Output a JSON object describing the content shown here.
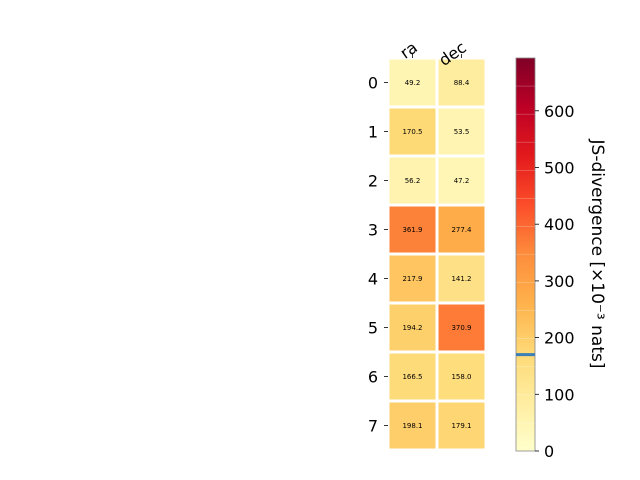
{
  "chart_data": {
    "type": "heatmap",
    "columns": [
      "ra",
      "dec"
    ],
    "rows": [
      "0",
      "1",
      "2",
      "3",
      "4",
      "5",
      "6",
      "7"
    ],
    "values": [
      [
        49.2,
        88.4
      ],
      [
        170.5,
        53.5
      ],
      [
        56.2,
        47.2
      ],
      [
        361.9,
        277.4
      ],
      [
        217.9,
        141.2
      ],
      [
        194.2,
        370.9
      ],
      [
        166.5,
        158.0
      ],
      [
        198.1,
        179.1
      ]
    ],
    "value_labels": [
      [
        "49.2",
        "88.4"
      ],
      [
        "170.5",
        "53.5"
      ],
      [
        "56.2",
        "47.2"
      ],
      [
        "361.9",
        "277.4"
      ],
      [
        "217.9",
        "141.2"
      ],
      [
        "194.2",
        "370.9"
      ],
      [
        "166.5",
        "158.0"
      ],
      [
        "198.1",
        "179.1"
      ]
    ],
    "colorbar": {
      "label": "JS-divergence [×10⁻³ nats]",
      "range": [
        0,
        693.1
      ],
      "ticks": [
        0,
        100,
        200,
        300,
        400,
        500,
        600
      ],
      "tick_labels": [
        "0",
        "100",
        "200",
        "300",
        "400",
        "500",
        "600"
      ],
      "marker_value": 170,
      "colormap": "YlOrRd",
      "marker_color": "#3a7fb5"
    },
    "grid": false
  }
}
